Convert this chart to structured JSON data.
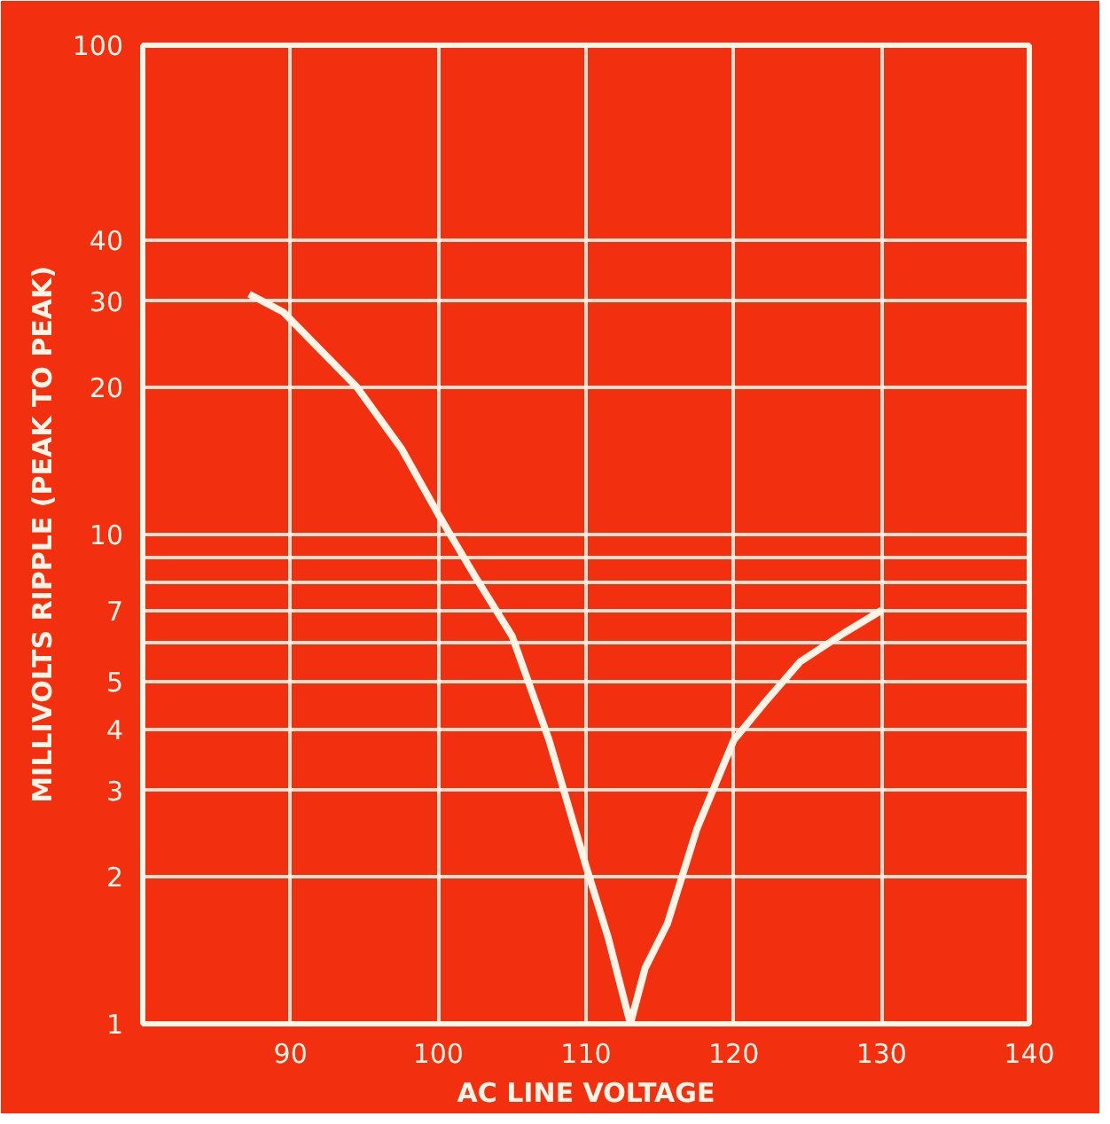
{
  "chart_data": {
    "type": "line",
    "xlabel": "AC LINE VOLTAGE",
    "ylabel": "MILLIVOLTS RIPPLE (PEAK TO PEAK)",
    "log": "y",
    "grid": true,
    "marker": "none",
    "line_style": "solid",
    "xlim": [
      80,
      140
    ],
    "xticks": [
      90,
      100,
      110,
      120,
      130,
      140
    ],
    "ylim": [
      1,
      100
    ],
    "yticks": [
      1,
      2,
      3,
      4,
      5,
      {
        "value": 6,
        "label": null
      },
      7,
      {
        "value": 8,
        "label": null
      },
      {
        "value": 9,
        "label": null
      },
      10,
      20,
      30,
      40,
      100
    ],
    "series": [
      {
        "color": "#fff4e6",
        "x": [
          87.2,
          89.5,
          94.5,
          97.5,
          100,
          102.5,
          105,
          107.5,
          110,
          111.5,
          113,
          114,
          115.5,
          117.5,
          120,
          122,
          124.5,
          127.5,
          130
        ],
        "values": [
          31,
          28.5,
          20,
          15,
          11,
          8.2,
          6.2,
          3.8,
          2.1,
          1.5,
          1,
          1.3,
          1.6,
          2.5,
          3.8,
          4.5,
          5.5,
          6.3,
          7
        ]
      }
    ]
  }
}
